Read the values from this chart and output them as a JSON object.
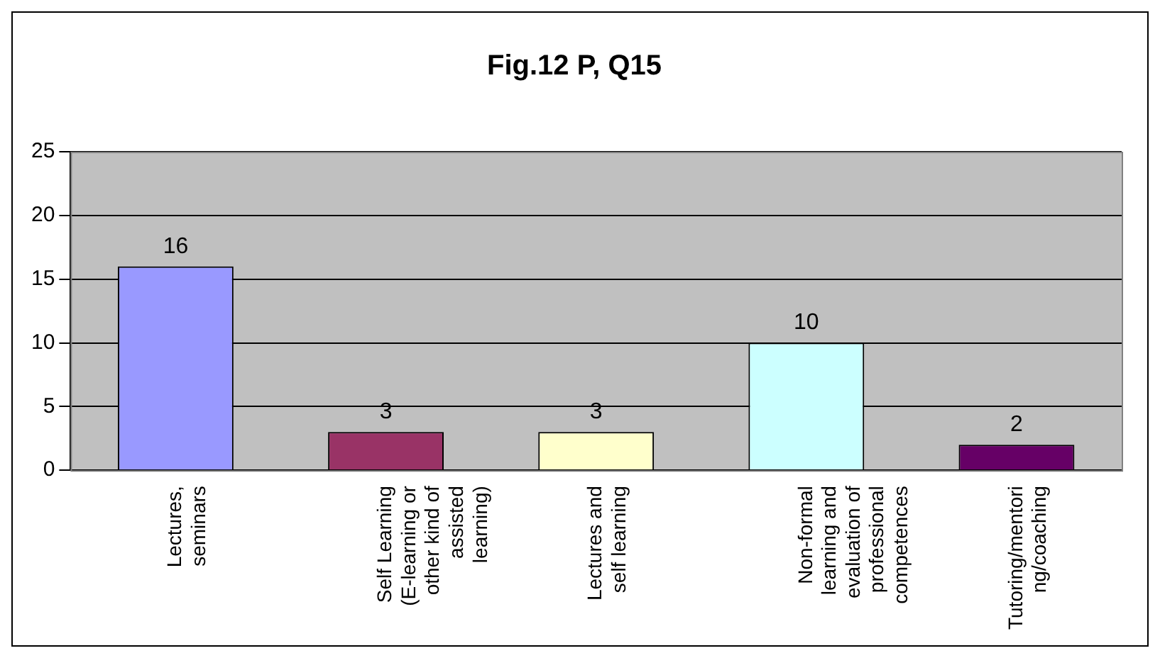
{
  "chart_data": {
    "type": "bar",
    "title": "Fig.12 P, Q15",
    "categories": [
      "Lectures, seminars",
      "Self Learning (E-learning or other kind of assisted learning)",
      "Lectures and self learning",
      "Non-formal learning and evaluation of professional competences",
      "Tutoring/mentoring/coaching"
    ],
    "values": [
      16,
      3,
      3,
      10,
      2
    ],
    "colors": [
      "#9999ff",
      "#993366",
      "#ffffcc",
      "#ccffff",
      "#660066"
    ],
    "ylim": [
      0,
      25
    ],
    "yticks": [
      0,
      5,
      10,
      15,
      20,
      25
    ],
    "grid": "y",
    "legend": false,
    "data_labels": true
  }
}
